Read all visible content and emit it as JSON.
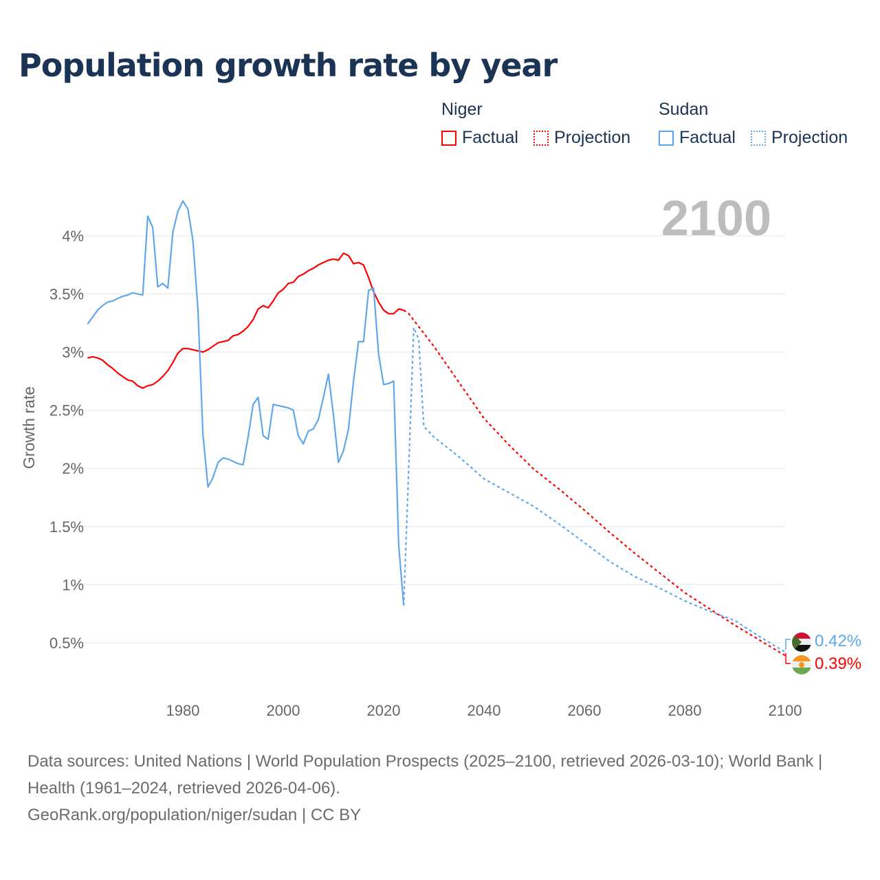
{
  "title": "Population growth rate by year",
  "legend": {
    "groups": [
      {
        "name": "Niger",
        "color": "#ff0000",
        "factual": "Factual",
        "projection": "Projection"
      },
      {
        "name": "Sudan",
        "color": "#5ea7ec",
        "factual": "Factual",
        "projection": "Projection"
      }
    ]
  },
  "year_label": "2100",
  "end_labels": {
    "sudan": "0.42%",
    "niger": "0.39%"
  },
  "footer": {
    "sources": "Data sources: United Nations | World Population Prospects (2025–2100, retrieved 2026-03-10); World Bank | Health (1961–2024, retrieved 2026-04-06).",
    "credit": "GeoRank.org/population/niger/sudan | CC BY"
  },
  "chart_data": {
    "type": "line",
    "title": "Population growth rate by year",
    "xlabel": "",
    "ylabel": "Growth rate",
    "xlim": [
      1961,
      2100
    ],
    "ylim": [
      0.2,
      4.4
    ],
    "xticks": [
      1980,
      2000,
      2020,
      2040,
      2060,
      2080,
      2100
    ],
    "xtick_labels": [
      "1980",
      "2000",
      "2020",
      "2040",
      "2060",
      "2080",
      "2100"
    ],
    "yticks": [
      0.5,
      1,
      1.5,
      2,
      2.5,
      3,
      3.5,
      4
    ],
    "ytick_labels": [
      "0.5%",
      "1%",
      "1.5%",
      "2%",
      "2.5%",
      "3%",
      "3.5%",
      "4%"
    ],
    "grid": true,
    "series": [
      {
        "name": "Niger Factual",
        "color": "#ff0000",
        "style": "solid",
        "x": [
          1961,
          1962,
          1963,
          1964,
          1965,
          1966,
          1967,
          1968,
          1969,
          1970,
          1971,
          1972,
          1973,
          1974,
          1975,
          1976,
          1977,
          1978,
          1979,
          1980,
          1981,
          1982,
          1983,
          1984,
          1985,
          1986,
          1987,
          1988,
          1989,
          1990,
          1991,
          1992,
          1993,
          1994,
          1995,
          1996,
          1997,
          1998,
          1999,
          2000,
          2001,
          2002,
          2003,
          2004,
          2005,
          2006,
          2007,
          2008,
          2009,
          2010,
          2011,
          2012,
          2013,
          2014,
          2015,
          2016,
          2017,
          2018,
          2019,
          2020,
          2021,
          2022,
          2023,
          2024
        ],
        "y": [
          2.95,
          2.96,
          2.95,
          2.93,
          2.89,
          2.86,
          2.82,
          2.79,
          2.76,
          2.75,
          2.71,
          2.69,
          2.71,
          2.72,
          2.75,
          2.79,
          2.84,
          2.91,
          2.99,
          3.03,
          3.03,
          3.02,
          3.01,
          3.0,
          3.02,
          3.05,
          3.08,
          3.09,
          3.1,
          3.14,
          3.15,
          3.18,
          3.22,
          3.28,
          3.37,
          3.4,
          3.38,
          3.44,
          3.51,
          3.54,
          3.59,
          3.6,
          3.65,
          3.67,
          3.7,
          3.72,
          3.75,
          3.77,
          3.79,
          3.8,
          3.79,
          3.85,
          3.83,
          3.76,
          3.77,
          3.75,
          3.64,
          3.52,
          3.43,
          3.36,
          3.33,
          3.33,
          3.37,
          3.36
        ]
      },
      {
        "name": "Niger Projection",
        "color": "#ff0000",
        "style": "dotted",
        "x": [
          2024,
          2025,
          2030,
          2035,
          2040,
          2045,
          2050,
          2055,
          2060,
          2065,
          2070,
          2075,
          2080,
          2085,
          2090,
          2095,
          2100
        ],
        "y": [
          3.36,
          3.33,
          3.05,
          2.74,
          2.43,
          2.2,
          1.99,
          1.82,
          1.64,
          1.45,
          1.27,
          1.1,
          0.93,
          0.79,
          0.65,
          0.52,
          0.39
        ]
      },
      {
        "name": "Sudan Factual",
        "color": "#5ea7ec",
        "style": "solid",
        "x": [
          1961,
          1962,
          1963,
          1964,
          1965,
          1966,
          1967,
          1968,
          1969,
          1970,
          1971,
          1972,
          1973,
          1974,
          1975,
          1976,
          1977,
          1978,
          1979,
          1980,
          1981,
          1982,
          1983,
          1984,
          1985,
          1986,
          1987,
          1988,
          1989,
          1990,
          1991,
          1992,
          1993,
          1994,
          1995,
          1996,
          1997,
          1998,
          1999,
          2000,
          2001,
          2002,
          2003,
          2004,
          2005,
          2006,
          2007,
          2008,
          2009,
          2010,
          2011,
          2012,
          2013,
          2014,
          2015,
          2016,
          2017,
          2018,
          2019,
          2020,
          2021,
          2022,
          2023,
          2024
        ],
        "y": [
          3.24,
          3.3,
          3.36,
          3.4,
          3.43,
          3.44,
          3.46,
          3.48,
          3.49,
          3.51,
          3.5,
          3.49,
          4.17,
          4.07,
          3.56,
          3.59,
          3.55,
          4.03,
          4.21,
          4.3,
          4.23,
          3.96,
          3.37,
          2.29,
          1.84,
          1.92,
          2.05,
          2.09,
          2.08,
          2.06,
          2.04,
          2.03,
          2.27,
          2.55,
          2.61,
          2.28,
          2.25,
          2.55,
          2.54,
          2.53,
          2.52,
          2.5,
          2.28,
          2.21,
          2.32,
          2.34,
          2.42,
          2.61,
          2.81,
          2.46,
          2.05,
          2.15,
          2.34,
          2.75,
          3.09,
          3.09,
          3.53,
          3.55,
          2.98,
          2.72,
          2.73,
          2.75,
          1.34,
          0.82
        ]
      },
      {
        "name": "Sudan Projection",
        "color": "#5ea7ec",
        "style": "dotted",
        "x": [
          2024,
          2025,
          2026,
          2027,
          2028,
          2030,
          2035,
          2040,
          2045,
          2050,
          2055,
          2060,
          2065,
          2070,
          2075,
          2080,
          2085,
          2090,
          2095,
          2100
        ],
        "y": [
          0.82,
          2.0,
          3.21,
          3.11,
          2.36,
          2.27,
          2.1,
          1.91,
          1.79,
          1.67,
          1.52,
          1.36,
          1.2,
          1.07,
          0.97,
          0.86,
          0.77,
          0.69,
          0.55,
          0.42
        ]
      }
    ]
  }
}
